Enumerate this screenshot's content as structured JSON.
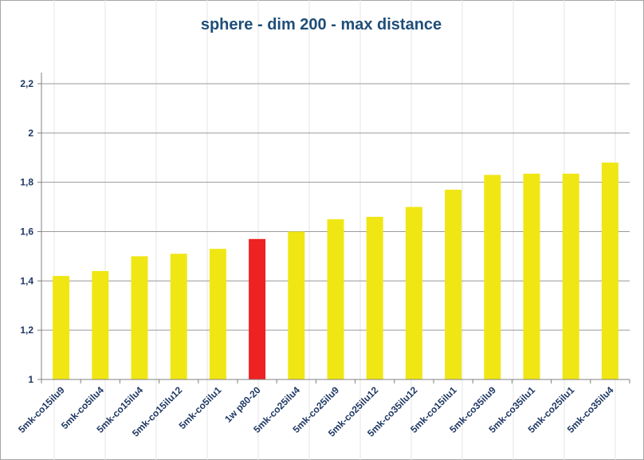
{
  "chart_data": {
    "type": "bar",
    "title": "sphere - dim 200 - max distance",
    "xlabel": "",
    "ylabel": "",
    "ylim": [
      1,
      2.2
    ],
    "yticks": [
      "1",
      "1,2",
      "1,4",
      "1,6",
      "1,8",
      "2",
      "2,2"
    ],
    "categories": [
      "5mk-co15ilu9",
      "5mk-co5ilu4",
      "5mk-co15ilu4",
      "5mk-co15ilu12",
      "5mk-co5ilu1",
      "1w p80-20",
      "5mk-co25ilu4",
      "5mk-co25ilu9",
      "5mk-co25ilu12",
      "5mk-co35ilu12",
      "5mk-co15ilu1",
      "5mk-co35ilu9",
      "5mk-co35ilu1",
      "5mk-co25ilu1",
      "5mk-co35ilu4"
    ],
    "values": [
      1.42,
      1.44,
      1.5,
      1.51,
      1.53,
      1.57,
      1.6,
      1.65,
      1.66,
      1.7,
      1.77,
      1.83,
      1.835,
      1.835,
      1.88
    ],
    "colors": [
      "#f0e614",
      "#f0e614",
      "#f0e614",
      "#f0e614",
      "#f0e614",
      "#ee2222",
      "#f0e614",
      "#f0e614",
      "#f0e614",
      "#f0e614",
      "#f0e614",
      "#f0e614",
      "#f0e614",
      "#f0e614",
      "#f0e614"
    ],
    "grid": true,
    "legend": "none"
  }
}
